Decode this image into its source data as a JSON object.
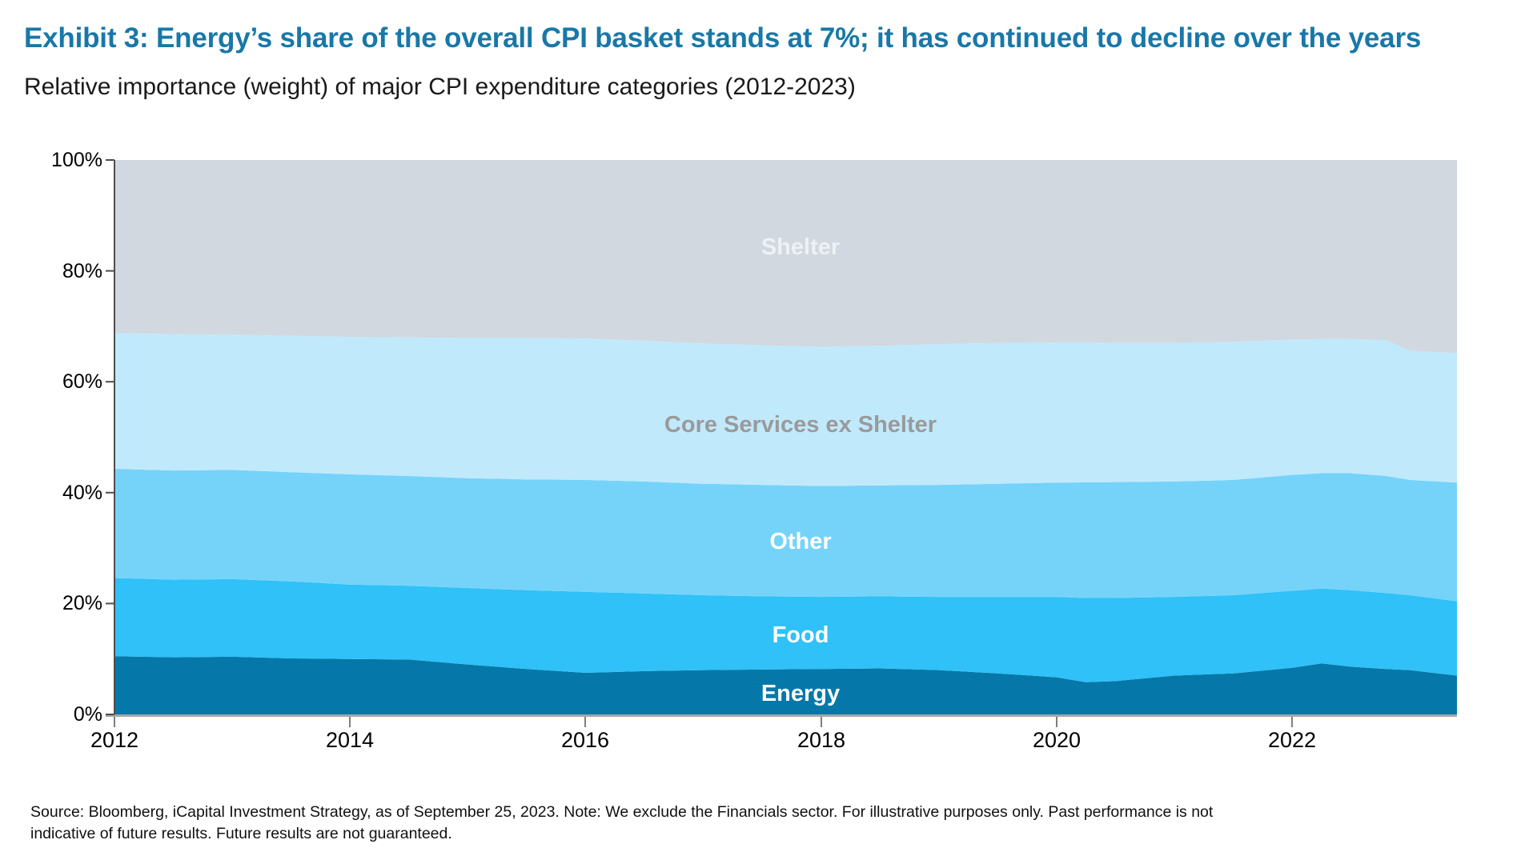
{
  "header": {
    "title": "Exhibit 3: Energy’s share of the overall CPI basket stands at 7%; it has continued to decline over the years",
    "subtitle": "Relative importance (weight) of major CPI expenditure categories (2012-2023)"
  },
  "theme": {
    "title_color": "#1878a8",
    "axis_line_color": "#4d4d4d",
    "baseline_color": "#a6a6a6",
    "tick_color": "#7f7f7f"
  },
  "footnote": {
    "text": "Source: Bloomberg, iCapital Investment Strategy, as of September 25, 2023. Note: We exclude the Financials sector. For illustrative purposes only. Past performance is not indicative of future results. Future results are not guaranteed."
  },
  "chart_data": {
    "type": "area",
    "stacked": true,
    "title": "Relative importance (weight) of major CPI expenditure categories (2012-2023)",
    "xlabel": "",
    "ylabel": "",
    "xlim": [
      2012,
      2023.4
    ],
    "ylim": [
      0,
      100
    ],
    "grid": false,
    "legend_position": "labels-inside-areas",
    "y_tick_labels": [
      "0%",
      "20%",
      "40%",
      "60%",
      "80%",
      "100%"
    ],
    "x_tick_labels": [
      "2012",
      "2014",
      "2016",
      "2018",
      "2020",
      "2022"
    ],
    "x": [
      2012,
      2012.5,
      2013,
      2013.5,
      2014,
      2014.5,
      2015,
      2015.5,
      2016,
      2016.5,
      2017,
      2017.5,
      2018,
      2018.5,
      2019,
      2019.5,
      2020,
      2020.25,
      2020.5,
      2021,
      2021.5,
      2022,
      2022.25,
      2022.5,
      2022.8,
      2023,
      2023.4
    ],
    "series": [
      {
        "key": "energy",
        "name": "Energy",
        "color": "#0578a9",
        "label_color": "#ffffff",
        "values": [
          10.5,
          10.3,
          10.4,
          10.1,
          10.0,
          9.9,
          9.0,
          8.2,
          7.5,
          7.8,
          8.0,
          8.1,
          8.2,
          8.3,
          8.0,
          7.4,
          6.7,
          5.8,
          6.0,
          7.0,
          7.4,
          8.4,
          9.2,
          8.6,
          8.2,
          8.0,
          7.0
        ]
      },
      {
        "key": "food",
        "name": "Food",
        "color": "#2fc1f7",
        "label_color": "#ffffff",
        "values": [
          14.1,
          14.0,
          14.0,
          13.9,
          13.4,
          13.3,
          13.8,
          14.2,
          14.6,
          14.0,
          13.5,
          13.2,
          13.0,
          13.0,
          13.2,
          13.8,
          14.5,
          15.2,
          15.0,
          14.2,
          14.1,
          13.9,
          13.5,
          13.8,
          13.7,
          13.5,
          13.4
        ]
      },
      {
        "key": "other",
        "name": "Other",
        "color": "#75d3fa",
        "label_color": "#ffffff",
        "values": [
          19.7,
          19.7,
          19.7,
          19.7,
          19.9,
          19.8,
          19.8,
          20.0,
          20.2,
          20.2,
          20.1,
          20.1,
          20.0,
          20.0,
          20.2,
          20.4,
          20.6,
          20.85,
          20.9,
          20.8,
          20.8,
          20.9,
          20.8,
          21.1,
          21.1,
          20.8,
          21.4
        ]
      },
      {
        "key": "core-services-ex-shelter",
        "name": "Core Services ex Shelter",
        "color": "#c0e9fc",
        "label_color": "#9a9a9a",
        "values": [
          24.5,
          24.6,
          24.4,
          24.6,
          24.8,
          25.0,
          25.3,
          25.5,
          25.5,
          25.4,
          25.3,
          25.2,
          25.1,
          25.2,
          25.4,
          25.4,
          25.3,
          25.25,
          25.1,
          25.0,
          24.9,
          24.4,
          24.2,
          24.2,
          24.5,
          23.3,
          23.4
        ]
      },
      {
        "key": "shelter",
        "name": "Shelter",
        "color": "#d1d8e0",
        "label_color": "#eef1f5",
        "values": [
          31.2,
          31.4,
          31.5,
          31.7,
          31.9,
          32.0,
          32.1,
          32.1,
          32.2,
          32.6,
          33.1,
          33.4,
          33.7,
          33.5,
          33.2,
          33.0,
          32.9,
          32.9,
          33.0,
          33.0,
          32.8,
          32.4,
          32.3,
          32.3,
          32.5,
          34.4,
          34.8
        ]
      }
    ]
  }
}
